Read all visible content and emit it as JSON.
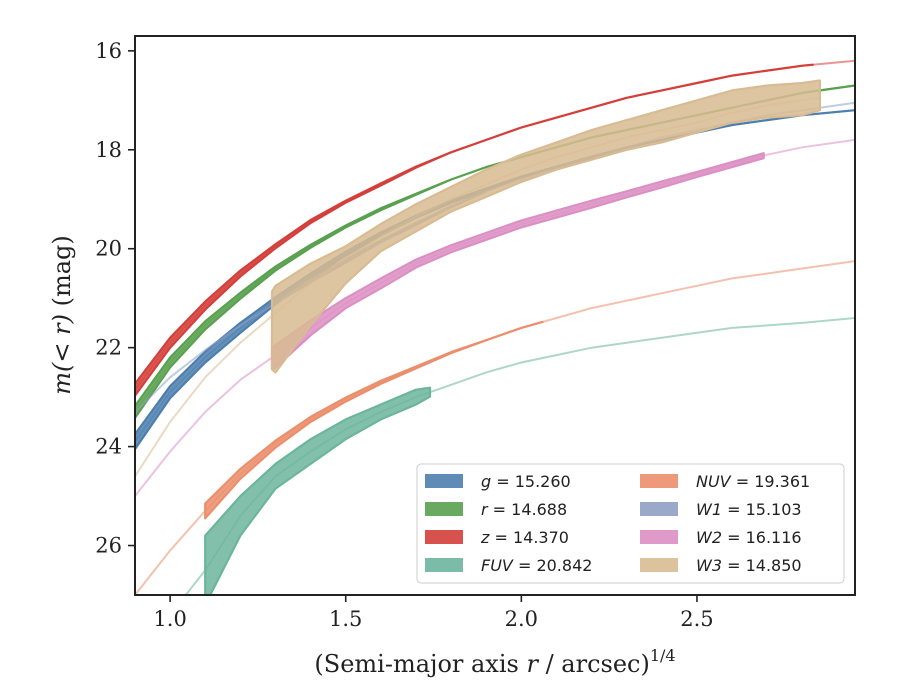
{
  "chart_data": {
    "type": "line",
    "xlabel": "(Semi-major axis r / arcsec)",
    "xlabel_italic_part": "r",
    "xlabel_pre": "(Semi-major axis ",
    "xlabel_post": " / arcsec)",
    "xlabel_sup": "1/4",
    "ylabel": "m(< r) (mag)",
    "ylabel_math": "m(< r)",
    "ylabel_unit": " (mag)",
    "xlim": [
      0.9,
      2.95
    ],
    "ylim": [
      27.0,
      15.7
    ],
    "y_inverted": true,
    "xticks": [
      1.0,
      1.5,
      2.0,
      2.5
    ],
    "xtick_labels": [
      "1.0",
      "1.5",
      "2.0",
      "2.5"
    ],
    "yticks": [
      16,
      18,
      20,
      22,
      24,
      26
    ],
    "ytick_labels": [
      "16",
      "18",
      "20",
      "22",
      "24",
      "26"
    ],
    "grid": false,
    "legend_position": "lower-right",
    "series": [
      {
        "name": "g = 15.260",
        "band": "g",
        "value": "15.260",
        "color": "#4c7fae",
        "x": [
          0.9,
          1.0,
          1.1,
          1.2,
          1.3,
          1.4,
          1.5,
          1.6,
          1.7,
          1.8,
          1.9,
          2.0,
          2.1,
          2.2,
          2.3,
          2.4,
          2.5,
          2.6,
          2.7,
          2.8,
          2.95
        ],
        "y": [
          23.9,
          22.9,
          22.2,
          21.6,
          21.05,
          20.55,
          20.1,
          19.7,
          19.35,
          19.05,
          18.8,
          18.55,
          18.35,
          18.15,
          17.95,
          17.8,
          17.65,
          17.5,
          17.4,
          17.3,
          17.2
        ],
        "band_lo": [
          23.75,
          22.78,
          22.08,
          21.5,
          20.98,
          20.5,
          20.06,
          19.67,
          19.33,
          19.03,
          18.78,
          18.54,
          18.34,
          18.14,
          17.95,
          17.8,
          17.65,
          17.5,
          17.4,
          17.3,
          17.2
        ],
        "band_hi": [
          24.05,
          23.02,
          22.3,
          21.7,
          21.12,
          20.6,
          20.14,
          19.73,
          19.37,
          19.07,
          18.82,
          18.56,
          18.36,
          18.16,
          17.95,
          17.8,
          17.65,
          17.5,
          17.4,
          17.3,
          17.2
        ],
        "solid_until": 2.95
      },
      {
        "name": "r = 14.688",
        "band": "r",
        "value": "14.688",
        "color": "#59a14f",
        "x": [
          0.9,
          1.0,
          1.1,
          1.2,
          1.3,
          1.4,
          1.5,
          1.6,
          1.7,
          1.8,
          1.9,
          2.0,
          2.1,
          2.2,
          2.3,
          2.4,
          2.5,
          2.6,
          2.7,
          2.8,
          2.95
        ],
        "y": [
          23.3,
          22.3,
          21.55,
          20.95,
          20.4,
          19.95,
          19.55,
          19.2,
          18.9,
          18.6,
          18.35,
          18.15,
          17.95,
          17.75,
          17.6,
          17.45,
          17.3,
          17.15,
          17.0,
          16.85,
          16.7
        ],
        "band_lo": [
          23.18,
          22.2,
          21.47,
          20.89,
          20.36,
          19.92,
          19.53,
          19.18,
          18.89,
          18.6,
          18.35,
          18.15,
          17.95,
          17.75,
          17.6,
          17.45,
          17.3,
          17.15,
          17.0,
          16.85,
          16.7
        ],
        "band_hi": [
          23.42,
          22.4,
          21.63,
          21.01,
          20.44,
          19.98,
          19.57,
          19.22,
          18.91,
          18.6,
          18.35,
          18.15,
          17.95,
          17.75,
          17.6,
          17.45,
          17.3,
          17.15,
          17.0,
          16.85,
          16.7
        ],
        "solid_until": 2.95
      },
      {
        "name": "z = 14.370",
        "band": "z",
        "value": "14.370",
        "color": "#d43f3a",
        "x": [
          0.9,
          1.0,
          1.1,
          1.2,
          1.3,
          1.4,
          1.5,
          1.6,
          1.7,
          1.8,
          1.9,
          2.0,
          2.1,
          2.2,
          2.3,
          2.4,
          2.5,
          2.6,
          2.7,
          2.8,
          2.95
        ],
        "y": [
          22.85,
          21.9,
          21.15,
          20.5,
          19.95,
          19.45,
          19.05,
          18.7,
          18.35,
          18.05,
          17.8,
          17.55,
          17.35,
          17.15,
          16.95,
          16.8,
          16.65,
          16.5,
          16.4,
          16.3,
          16.2
        ],
        "band_lo": [
          22.73,
          21.8,
          21.07,
          20.44,
          19.91,
          19.42,
          19.03,
          18.68,
          18.34,
          18.05,
          17.8,
          17.55,
          17.35,
          17.15,
          16.95,
          16.8,
          16.65,
          16.5,
          16.4,
          16.3,
          16.2
        ],
        "band_hi": [
          22.97,
          22.0,
          21.23,
          20.56,
          19.99,
          19.48,
          19.07,
          18.72,
          18.36,
          18.05,
          17.8,
          17.55,
          17.35,
          17.15,
          16.95,
          16.8,
          16.65,
          16.5,
          16.4,
          16.3,
          16.2
        ],
        "solid_until": 2.83
      },
      {
        "name": "FUV = 20.842",
        "band": "FUV",
        "value": "20.842",
        "color": "#6cb59d",
        "x": [
          0.9,
          1.0,
          1.1,
          1.2,
          1.3,
          1.4,
          1.5,
          1.6,
          1.7,
          1.8,
          1.9,
          2.0,
          2.1,
          2.2,
          2.3,
          2.4,
          2.5,
          2.6,
          2.7,
          2.8,
          2.95
        ],
        "y": [
          28.5,
          27.4,
          26.5,
          25.4,
          24.6,
          24.1,
          23.65,
          23.3,
          23.0,
          22.75,
          22.5,
          22.3,
          22.15,
          22.0,
          21.9,
          21.8,
          21.7,
          21.6,
          21.55,
          21.5,
          21.4
        ],
        "band_lo": [
          28.5,
          27.4,
          25.8,
          25.0,
          24.35,
          23.85,
          23.45,
          23.15,
          22.85,
          22.75,
          22.5,
          22.3,
          22.15,
          22.0,
          21.9,
          21.8,
          21.7,
          21.6,
          21.55,
          21.5,
          21.4
        ],
        "band_hi": [
          28.5,
          27.4,
          27.2,
          25.8,
          24.85,
          24.35,
          23.85,
          23.45,
          23.15,
          22.75,
          22.5,
          22.3,
          22.15,
          22.0,
          21.9,
          21.8,
          21.7,
          21.6,
          21.55,
          21.5,
          21.4
        ],
        "band_from": 1.1,
        "solid_until": 1.74
      },
      {
        "name": "NUV = 19.361",
        "band": "NUV",
        "value": "19.361",
        "color": "#eb8e6c",
        "x": [
          0.9,
          1.0,
          1.1,
          1.2,
          1.3,
          1.4,
          1.5,
          1.6,
          1.7,
          1.8,
          1.9,
          2.0,
          2.1,
          2.2,
          2.3,
          2.4,
          2.5,
          2.6,
          2.7,
          2.8,
          2.95
        ],
        "y": [
          27.0,
          26.1,
          25.3,
          24.55,
          23.95,
          23.45,
          23.05,
          22.7,
          22.4,
          22.1,
          21.85,
          21.6,
          21.4,
          21.2,
          21.05,
          20.9,
          20.75,
          20.6,
          20.5,
          20.4,
          20.25
        ],
        "band_lo": [
          27.0,
          26.1,
          25.15,
          24.45,
          23.88,
          23.4,
          23.01,
          22.67,
          22.38,
          22.09,
          21.85,
          21.6,
          21.4,
          21.2,
          21.05,
          20.9,
          20.75,
          20.6,
          20.5,
          20.4,
          20.25
        ],
        "band_hi": [
          27.0,
          26.1,
          25.45,
          24.65,
          24.02,
          23.5,
          23.09,
          22.73,
          22.42,
          22.11,
          21.85,
          21.6,
          21.4,
          21.2,
          21.05,
          20.9,
          20.75,
          20.6,
          20.5,
          20.4,
          20.25
        ],
        "band_from": 1.1,
        "solid_until": 2.06
      },
      {
        "name": "W1 = 15.103",
        "band": "W1",
        "value": "15.103",
        "color": "#8fa0c4",
        "x": [
          0.9,
          1.0,
          1.1,
          1.2,
          1.3,
          1.4,
          1.5,
          1.6,
          1.7,
          1.8,
          1.9,
          2.0,
          2.1,
          2.2,
          2.3,
          2.4,
          2.5,
          2.6,
          2.7,
          2.8,
          2.95
        ],
        "y": [
          23.3,
          22.6,
          22.05,
          21.55,
          21.1,
          20.65,
          20.25,
          19.85,
          19.5,
          19.15,
          18.85,
          18.6,
          18.35,
          18.15,
          17.95,
          17.75,
          17.6,
          17.45,
          17.3,
          17.2,
          17.05
        ],
        "band_lo": [
          23.3,
          22.6,
          22.05,
          21.55,
          21.1,
          20.62,
          20.22,
          19.83,
          19.48,
          19.14,
          18.85,
          18.6,
          18.35,
          18.15,
          17.95,
          17.75,
          17.6,
          17.45,
          17.3,
          17.2,
          17.05
        ],
        "band_hi": [
          23.3,
          22.6,
          22.05,
          21.55,
          21.1,
          20.68,
          20.28,
          19.87,
          19.52,
          19.16,
          18.85,
          18.6,
          18.35,
          18.15,
          17.95,
          17.75,
          17.6,
          17.45,
          17.3,
          17.2,
          17.05
        ],
        "solid_from": 1.32,
        "solid_until": 1.9
      },
      {
        "name": "W2 = 16.116",
        "band": "W2",
        "value": "16.116",
        "color": "#dc8fc3",
        "x": [
          0.9,
          1.0,
          1.1,
          1.2,
          1.3,
          1.4,
          1.5,
          1.6,
          1.7,
          1.8,
          1.9,
          2.0,
          2.1,
          2.2,
          2.3,
          2.4,
          2.5,
          2.6,
          2.7,
          2.8,
          2.95
        ],
        "y": [
          25.0,
          24.1,
          23.3,
          22.65,
          22.15,
          21.6,
          21.1,
          20.7,
          20.3,
          20.0,
          19.75,
          19.5,
          19.3,
          19.1,
          18.9,
          18.7,
          18.5,
          18.3,
          18.1,
          17.95,
          17.8
        ],
        "band_lo": [
          25.0,
          24.1,
          23.3,
          22.65,
          21.95,
          21.45,
          21.0,
          20.6,
          20.22,
          19.93,
          19.68,
          19.43,
          19.23,
          19.03,
          18.84,
          18.64,
          18.45,
          18.25,
          18.05,
          17.95,
          17.8
        ],
        "band_hi": [
          25.0,
          24.1,
          23.3,
          22.65,
          22.4,
          21.75,
          21.2,
          20.8,
          20.38,
          20.07,
          19.82,
          19.57,
          19.37,
          19.17,
          18.96,
          18.76,
          18.55,
          18.35,
          18.15,
          17.95,
          17.8
        ],
        "band_from": 1.29,
        "solid_until": 2.69
      },
      {
        "name": "W3 = 14.850",
        "band": "W3",
        "value": "14.850",
        "color": "#d8bb92",
        "x": [
          0.9,
          1.0,
          1.1,
          1.2,
          1.3,
          1.4,
          1.5,
          1.6,
          1.7,
          1.8,
          1.9,
          2.0,
          2.1,
          2.2,
          2.3,
          2.4,
          2.5,
          2.6,
          2.7,
          2.8,
          2.85
        ],
        "y": [
          24.6,
          23.5,
          22.6,
          21.9,
          21.3,
          20.7,
          20.2,
          19.75,
          19.35,
          19.0,
          18.7,
          18.4,
          18.15,
          17.95,
          17.75,
          17.6,
          17.45,
          17.25,
          17.1,
          17.0,
          16.95
        ],
        "band_lo": [
          24.6,
          23.5,
          22.6,
          21.9,
          20.75,
          20.3,
          19.95,
          19.5,
          19.1,
          18.75,
          18.4,
          18.1,
          17.85,
          17.6,
          17.4,
          17.2,
          17.0,
          16.8,
          16.7,
          16.65,
          16.6
        ],
        "band_hi": [
          24.6,
          23.5,
          22.6,
          21.9,
          22.5,
          21.55,
          20.7,
          20.05,
          19.65,
          19.25,
          18.95,
          18.65,
          18.4,
          18.2,
          18.0,
          17.85,
          17.65,
          17.45,
          17.35,
          17.3,
          17.2
        ],
        "band_from": 1.29,
        "solid_until": 2.85
      }
    ]
  }
}
